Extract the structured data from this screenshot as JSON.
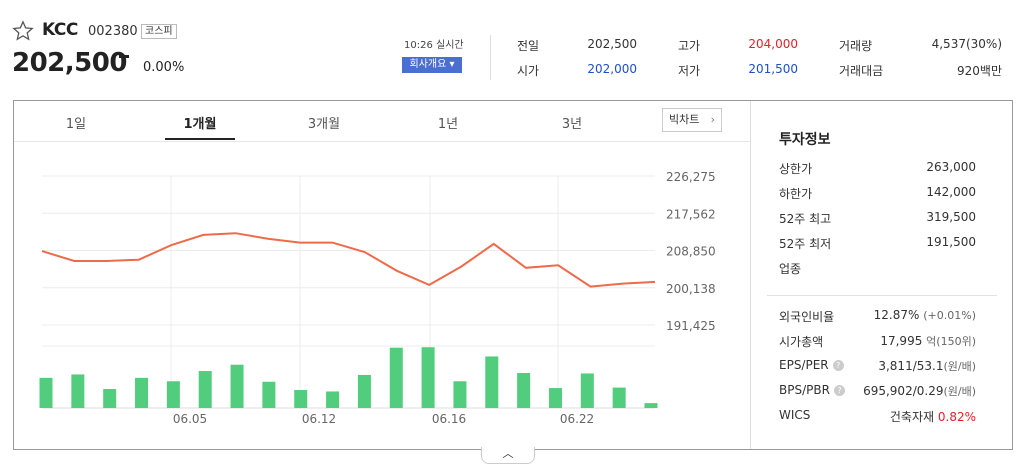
{
  "header": {
    "name": "KCC",
    "code": "002380",
    "market": "코스피",
    "price": "202,500",
    "change_rate": "0.00%",
    "realtime": "10:26 실시간",
    "company_button": "회사개요 ▾"
  },
  "quote": {
    "prev_close_label": "전일",
    "prev_close": "202,500",
    "open_label": "시가",
    "open": "202,000",
    "high_label": "고가",
    "high": "204,000",
    "low_label": "저가",
    "low": "201,500",
    "volume_label": "거래량",
    "volume": "4,537(30%)",
    "amount_label": "거래대금",
    "amount": "920백만"
  },
  "tabs": {
    "day": "1일",
    "month": "1개월",
    "three_month": "3개월",
    "year": "1년",
    "three_year": "3년",
    "big_chart": "빅차트"
  },
  "colors": {
    "line": "#ee6b4a",
    "volume": "#52cc7d",
    "up": "#e61e2b",
    "down": "#1e4fc4"
  },
  "chart_data": {
    "type": "line",
    "ytick_labels": [
      "226,275",
      "217,562",
      "208,850",
      "200,138",
      "191,425"
    ],
    "ylim": [
      191425,
      226275
    ],
    "xtick_labels": [
      "06.05",
      "06.12",
      "06.16",
      "06.22"
    ],
    "series": [
      {
        "values": [
          208700,
          206400,
          206400,
          206700,
          210100,
          212500,
          212900,
          211600,
          210700,
          210700,
          208500,
          204100,
          200800,
          205100,
          210400,
          204800,
          205400,
          200400,
          201100,
          201500
        ]
      }
    ],
    "volume": [
      6200,
      6900,
      3900,
      6200,
      5500,
      7600,
      8900,
      5400,
      3700,
      3400,
      6800,
      12400,
      12500,
      5500,
      10600,
      7200,
      4100,
      7100,
      4200,
      1000
    ]
  },
  "invest": {
    "title": "투자정보",
    "upper_limit_label": "상한가",
    "upper_limit": "263,000",
    "lower_limit_label": "하한가",
    "lower_limit": "142,000",
    "high52_label": "52주 최고",
    "high52": "319,500",
    "low52_label": "52주 최저",
    "low52": "191,500",
    "industry_label": "업종",
    "foreign_label": "외국인비율",
    "foreign": "12.87%",
    "foreign_change": "(+0.01%)",
    "cap_label": "시가총액",
    "cap": "17,995",
    "cap_unit": "억(150위)",
    "eps_label": "EPS/PER",
    "eps": "3,811/53.1",
    "eps_unit": "(원/배)",
    "bps_label": "BPS/PBR",
    "bps": "695,902/0.29",
    "bps_unit": "(원/배)",
    "wics_label": "WICS",
    "wics": "건축자재",
    "wics_change": "0.82%",
    "help_mark": "?"
  },
  "collapse_icon": "︿"
}
